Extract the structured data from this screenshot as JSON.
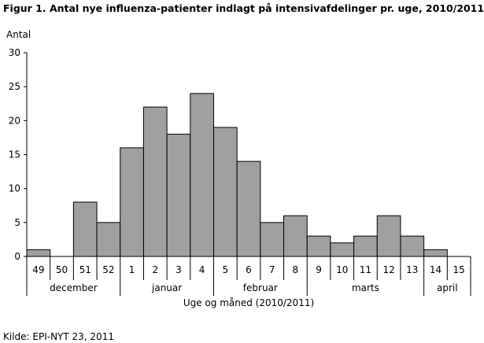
{
  "title": "Figur 1. Antal nye influenza-patienter indlagt på intensivafdelinger pr. uge, 2010/2011",
  "source": "Kilde: EPI-NYT 23, 2011",
  "chart_data": {
    "type": "bar",
    "title": "Figur 1. Antal nye influenza-patienter indlagt på intensivafdelinger pr. uge, 2010/2011",
    "ylabel": "Antal",
    "xlabel": "Uge og måned (2010/2011)",
    "ylim": [
      0,
      30
    ],
    "yticks": [
      0,
      5,
      10,
      15,
      20,
      25,
      30
    ],
    "grid": false,
    "categories": [
      "49",
      "50",
      "51",
      "52",
      "1",
      "2",
      "3",
      "4",
      "5",
      "6",
      "7",
      "8",
      "9",
      "10",
      "11",
      "12",
      "13",
      "14",
      "15"
    ],
    "values": [
      1,
      0,
      8,
      5,
      16,
      22,
      18,
      24,
      19,
      14,
      5,
      6,
      3,
      2,
      3,
      6,
      3,
      1,
      0
    ],
    "months": [
      {
        "label": "december",
        "start": 0,
        "end": 3
      },
      {
        "label": "januar",
        "start": 4,
        "end": 7
      },
      {
        "label": "februar",
        "start": 8,
        "end": 11
      },
      {
        "label": "marts",
        "start": 12,
        "end": 16
      },
      {
        "label": "april",
        "start": 17,
        "end": 18
      }
    ],
    "colors": {
      "bar": "#a0a0a0",
      "stroke": "#000000"
    }
  }
}
